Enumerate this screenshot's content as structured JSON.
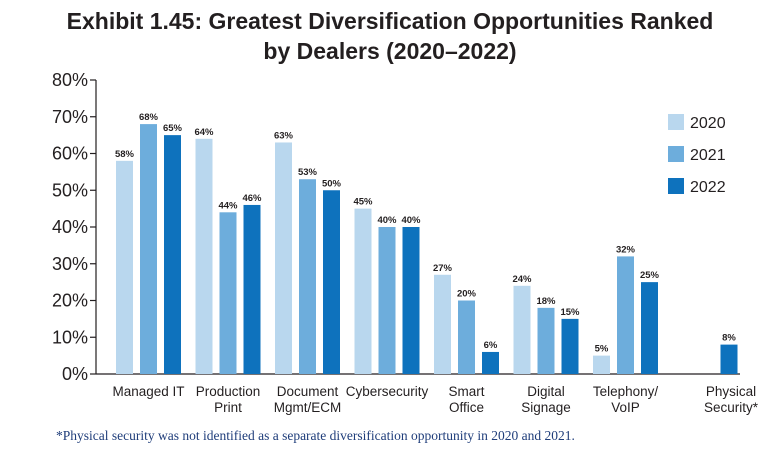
{
  "chart_data": {
    "type": "bar",
    "title_lines": [
      "Exhibit 1.45: Greatest Diversification Opportunities Ranked",
      "by Dealers (2020–2022)"
    ],
    "categories": [
      [
        "Managed IT"
      ],
      [
        "Production",
        "Print"
      ],
      [
        "Document",
        "Mgmt/ECM"
      ],
      [
        "Cybersecurity"
      ],
      [
        "Smart",
        "Office"
      ],
      [
        "Digital",
        "Signage"
      ],
      [
        "Telephony/",
        "VoIP"
      ],
      [
        "Physical",
        "Security*"
      ]
    ],
    "series": [
      {
        "name": "2020",
        "color": "#b9d7ee",
        "values": [
          58,
          64,
          63,
          45,
          27,
          24,
          5,
          null
        ],
        "labels": [
          "58%",
          "64%",
          "63%",
          "45%",
          "27%",
          "24%",
          "5%",
          null
        ]
      },
      {
        "name": "2021",
        "color": "#6daddc",
        "values": [
          68,
          44,
          53,
          40,
          20,
          18,
          32,
          null
        ],
        "labels": [
          "68%",
          "44%",
          "53%",
          "40%",
          "20%",
          "18%",
          "32%",
          null
        ]
      },
      {
        "name": "2022",
        "color": "#0e72bd",
        "values": [
          65,
          46,
          50,
          40,
          6,
          15,
          25,
          8
        ],
        "labels": [
          "65%",
          "46%",
          "50%",
          "40%",
          "6%",
          "15%",
          "25%",
          "8%"
        ]
      }
    ],
    "yticks": [
      "0%",
      "10%",
      "20%",
      "30%",
      "40%",
      "50%",
      "60%",
      "70%",
      "80%"
    ],
    "ylim": [
      0,
      80
    ],
    "legend_position": "right",
    "grid": false
  },
  "footnote": "*Physical security was not identified as a separate diversification opportunity in 2020 and 2021."
}
